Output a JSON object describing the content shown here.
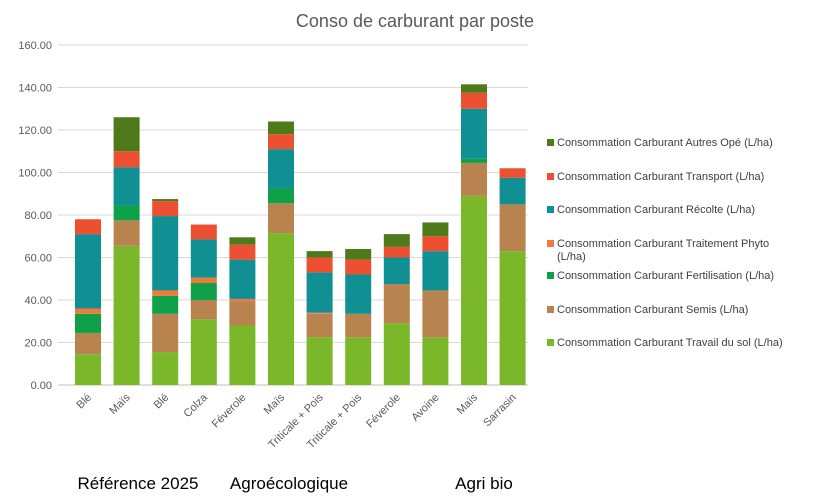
{
  "chart_data": {
    "type": "bar",
    "stacked": true,
    "title": "Conso de carburant par poste",
    "categories": [
      "Blé",
      "Maïs",
      "Blé",
      "Colza",
      "Féverole",
      "Maïs",
      "Triticale + Pois",
      "Triticale + Pois",
      "Féverole",
      "Avoine",
      "Maïs",
      "Sarrasin"
    ],
    "ylim": [
      0,
      160
    ],
    "yticks": [
      "0.00",
      "20.00",
      "40.00",
      "60.00",
      "80.00",
      "100.00",
      "120.00",
      "140.00",
      "160.00"
    ],
    "grid": true,
    "legend_position": "right",
    "groups": [
      {
        "label": "Référence 2025",
        "from": 0,
        "to": 3
      },
      {
        "label": "Agroécologique",
        "from": 4,
        "to": 9
      },
      {
        "label": "Agri bio",
        "from": 10,
        "to": 11
      }
    ],
    "series": [
      {
        "name": "Consommation Carburant Travail du sol (L/ha)",
        "color": "#7ab829",
        "values": [
          14.5,
          65.5,
          15.5,
          31,
          28,
          71.5,
          22.5,
          22.5,
          29,
          22.5,
          89,
          63
        ]
      },
      {
        "name": "Consommation Carburant Semis (L/ha)",
        "color": "#b8834e",
        "values": [
          10,
          12,
          18,
          9,
          11.5,
          14,
          11,
          11,
          18.5,
          22,
          15.5,
          22
        ]
      },
      {
        "name": "Consommation Carburant Fertilisation (L/ha)",
        "color": "#0fa04a",
        "values": [
          9,
          7,
          8.5,
          8,
          0,
          7,
          0,
          0,
          0,
          0,
          2,
          0
        ]
      },
      {
        "name": "Consommation Carburant Traitement Phyto (L/ha)",
        "color": "#f07a3a",
        "values": [
          2.5,
          0,
          2.5,
          2.5,
          1,
          0,
          0.5,
          0,
          0,
          0,
          0,
          0
        ]
      },
      {
        "name": "Consommation Carburant Récolte (L/ha)",
        "color": "#119093",
        "values": [
          35,
          18,
          35,
          18,
          18.5,
          18.5,
          19,
          18.5,
          12.5,
          18.5,
          23.5,
          12.5
        ]
      },
      {
        "name": "Consommation Carburant Transport (L/ha)",
        "color": "#ec5030",
        "values": [
          7,
          7.5,
          7,
          7,
          7,
          7,
          7,
          7,
          5,
          7,
          7.5,
          4.5
        ]
      },
      {
        "name": "Consommation Carburant Autres Opé (L/ha)",
        "color": "#4e7a1c",
        "values": [
          0,
          16,
          1,
          0,
          3.5,
          6,
          3,
          5,
          6,
          6.5,
          4,
          0
        ]
      }
    ]
  }
}
